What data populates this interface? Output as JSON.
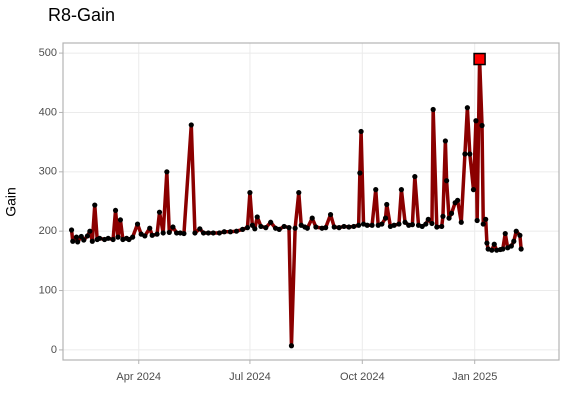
{
  "chart_data": {
    "type": "line",
    "title": "R8-Gain",
    "y_label": "Gain",
    "x": [
      "2024-02-06",
      "2024-02-07",
      "2024-02-10",
      "2024-02-11",
      "2024-02-14",
      "2024-02-16",
      "2024-02-19",
      "2024-02-21",
      "2024-02-23",
      "2024-02-25",
      "2024-02-27",
      "2024-02-29",
      "2024-03-04",
      "2024-03-07",
      "2024-03-11",
      "2024-03-13",
      "2024-03-15",
      "2024-03-17",
      "2024-03-19",
      "2024-03-22",
      "2024-03-24",
      "2024-03-27",
      "2024-03-31",
      "2024-04-03",
      "2024-04-06",
      "2024-04-10",
      "2024-04-12",
      "2024-04-16",
      "2024-04-18",
      "2024-04-21",
      "2024-04-24",
      "2024-04-26",
      "2024-04-29",
      "2024-05-02",
      "2024-05-05",
      "2024-05-08",
      "2024-05-14",
      "2024-05-17",
      "2024-05-21",
      "2024-05-24",
      "2024-05-28",
      "2024-06-01",
      "2024-06-06",
      "2024-06-10",
      "2024-06-15",
      "2024-06-20",
      "2024-06-25",
      "2024-06-29",
      "2024-07-01",
      "2024-07-03",
      "2024-07-05",
      "2024-07-07",
      "2024-07-10",
      "2024-07-14",
      "2024-07-18",
      "2024-07-22",
      "2024-07-25",
      "2024-07-29",
      "2024-08-02",
      "2024-08-04",
      "2024-08-07",
      "2024-08-10",
      "2024-08-12",
      "2024-08-15",
      "2024-08-17",
      "2024-08-21",
      "2024-08-24",
      "2024-08-29",
      "2024-09-01",
      "2024-09-05",
      "2024-09-08",
      "2024-09-12",
      "2024-09-16",
      "2024-09-20",
      "2024-09-24",
      "2024-09-28",
      "2024-09-29",
      "2024-09-30",
      "2024-10-02",
      "2024-10-05",
      "2024-10-09",
      "2024-10-12",
      "2024-10-14",
      "2024-10-17",
      "2024-10-20",
      "2024-10-21",
      "2024-10-24",
      "2024-10-27",
      "2024-10-31",
      "2024-11-02",
      "2024-11-05",
      "2024-11-08",
      "2024-11-11",
      "2024-11-13",
      "2024-11-16",
      "2024-11-19",
      "2024-11-22",
      "2024-11-24",
      "2024-11-27",
      "2024-11-28",
      "2024-12-01",
      "2024-12-05",
      "2024-12-06",
      "2024-12-08",
      "2024-12-09",
      "2024-12-11",
      "2024-12-13",
      "2024-12-16",
      "2024-12-18",
      "2024-12-21",
      "2024-12-24",
      "2024-12-26",
      "2024-12-28",
      "2024-12-31",
      "2025-01-02",
      "2025-01-03",
      "2025-01-05",
      "2025-01-07",
      "2025-01-08",
      "2025-01-10",
      "2025-01-11",
      "2025-01-12",
      "2025-01-15",
      "2025-01-17",
      "2025-01-19",
      "2025-01-22",
      "2025-01-24",
      "2025-01-26",
      "2025-01-28",
      "2025-01-31",
      "2025-02-02",
      "2025-02-04",
      "2025-02-07",
      "2025-02-08"
    ],
    "series": [
      {
        "color": "#8b0000",
        "point_color": "#000000",
        "values": [
          202,
          183,
          190,
          182,
          191,
          185,
          192,
          200,
          183,
          244,
          186,
          188,
          186,
          188,
          186,
          235,
          190,
          219,
          186,
          188,
          186,
          190,
          212,
          195,
          192,
          205,
          193,
          195,
          232,
          197,
          300,
          198,
          207,
          197,
          197,
          196,
          379,
          197,
          204,
          197,
          197,
          197,
          197,
          199,
          199,
          200,
          203,
          206,
          265,
          210,
          204,
          224,
          208,
          206,
          215,
          205,
          203,
          208,
          206,
          7,
          205,
          265,
          210,
          207,
          205,
          222,
          207,
          205,
          206,
          228,
          207,
          206,
          208,
          207,
          208,
          210,
          298,
          368,
          212,
          210,
          210,
          270,
          210,
          212,
          222,
          245,
          208,
          210,
          212,
          270,
          215,
          210,
          211,
          292,
          210,
          208,
          212,
          220,
          213,
          405,
          207,
          208,
          225,
          352,
          285,
          222,
          230,
          248,
          252,
          215,
          330,
          408,
          330,
          270,
          386,
          218,
          490,
          378,
          212,
          220,
          180,
          170,
          168,
          178,
          168,
          169,
          170,
          196,
          172,
          175,
          183,
          200,
          193,
          170
        ]
      }
    ],
    "highlight": {
      "x": "2025-01-05",
      "y": 490,
      "color": "#ff0000"
    },
    "xlim": [
      "2024-01-30",
      "2025-03-11"
    ],
    "xticks": [
      {
        "value": "2024-04-01",
        "label": "Apr 2024"
      },
      {
        "value": "2024-07-01",
        "label": "Jul 2024"
      },
      {
        "value": "2024-10-01",
        "label": "Oct 2024"
      },
      {
        "value": "2025-01-01",
        "label": "Jan 2025"
      }
    ],
    "ylim": [
      -17,
      517
    ],
    "yticks": [
      0,
      100,
      200,
      300,
      400,
      500
    ],
    "grid": true
  }
}
